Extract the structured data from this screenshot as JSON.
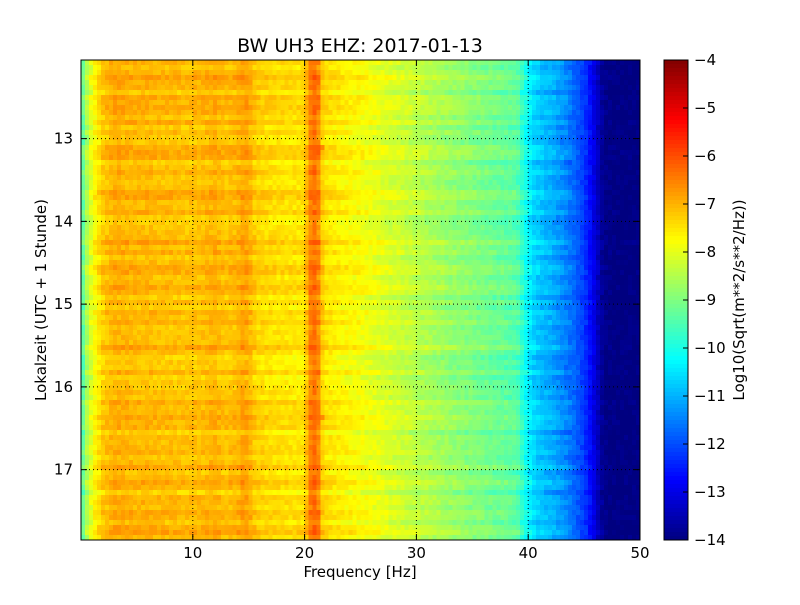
{
  "chart_data": {
    "type": "heatmap",
    "title": "BW UH3 EHZ: 2017-01-13",
    "xlabel": "Frequency [Hz]",
    "ylabel": "Lokalzeit (UTC + 1 Stunde)",
    "colorbar_label": "Log10(Sqrt(m**2/s**2/Hz))",
    "xlim": [
      0,
      50
    ],
    "ylim": [
      17.85,
      12.05
    ],
    "clim": [
      -14,
      -4
    ],
    "x_ticks": [
      10,
      20,
      30,
      40,
      50
    ],
    "x_tick_labels": [
      "10",
      "20",
      "30",
      "40",
      "50"
    ],
    "y_ticks": [
      13,
      14,
      15,
      16,
      17
    ],
    "y_tick_labels": [
      "13",
      "14",
      "15",
      "16",
      "17"
    ],
    "cbar_ticks": [
      -4,
      -5,
      -6,
      -7,
      -8,
      -9,
      -10,
      -11,
      -12,
      -13,
      -14
    ],
    "cbar_tick_labels": [
      "−4",
      "−5",
      "−6",
      "−7",
      "−8",
      "−9",
      "−10",
      "−11",
      "−12",
      "−13",
      "−14"
    ],
    "colormap": "jet",
    "grid": true,
    "spectral_profile": {
      "frequency_hz": [
        0,
        0.5,
        1,
        2,
        3,
        4,
        5,
        6,
        7,
        8,
        9,
        10,
        11,
        12,
        12.5,
        13,
        14,
        14.5,
        15,
        15.5,
        16,
        17,
        18,
        19,
        20,
        20.5,
        21,
        21.5,
        22,
        23,
        24,
        25,
        27,
        30,
        33,
        36,
        38,
        39,
        40,
        40.5,
        41,
        42,
        43,
        44,
        45,
        45.5,
        46,
        46.5,
        47,
        48,
        50
      ],
      "log10_amplitude": [
        -9.6,
        -8.6,
        -7.9,
        -7.2,
        -6.95,
        -7.0,
        -7.05,
        -7.05,
        -7.1,
        -7.1,
        -7.15,
        -7.1,
        -7.1,
        -6.95,
        -7.1,
        -7.15,
        -7.05,
        -6.85,
        -6.9,
        -7.2,
        -7.35,
        -7.4,
        -7.45,
        -7.5,
        -7.45,
        -6.5,
        -6.35,
        -7.2,
        -7.5,
        -7.6,
        -7.7,
        -7.8,
        -8.05,
        -8.4,
        -8.75,
        -9.05,
        -9.25,
        -9.35,
        -10.3,
        -10.6,
        -10.8,
        -11.0,
        -11.3,
        -11.7,
        -12.2,
        -12.6,
        -13.1,
        -13.7,
        -13.95,
        -14,
        -14
      ]
    },
    "features": [
      {
        "frequency_hz": 21,
        "description": "narrow persistent spectral line"
      },
      {
        "frequency_hz": 15,
        "description": "weaker persistent spectral band"
      },
      {
        "frequency_hz": 12,
        "description": "weak spectral band"
      }
    ]
  }
}
